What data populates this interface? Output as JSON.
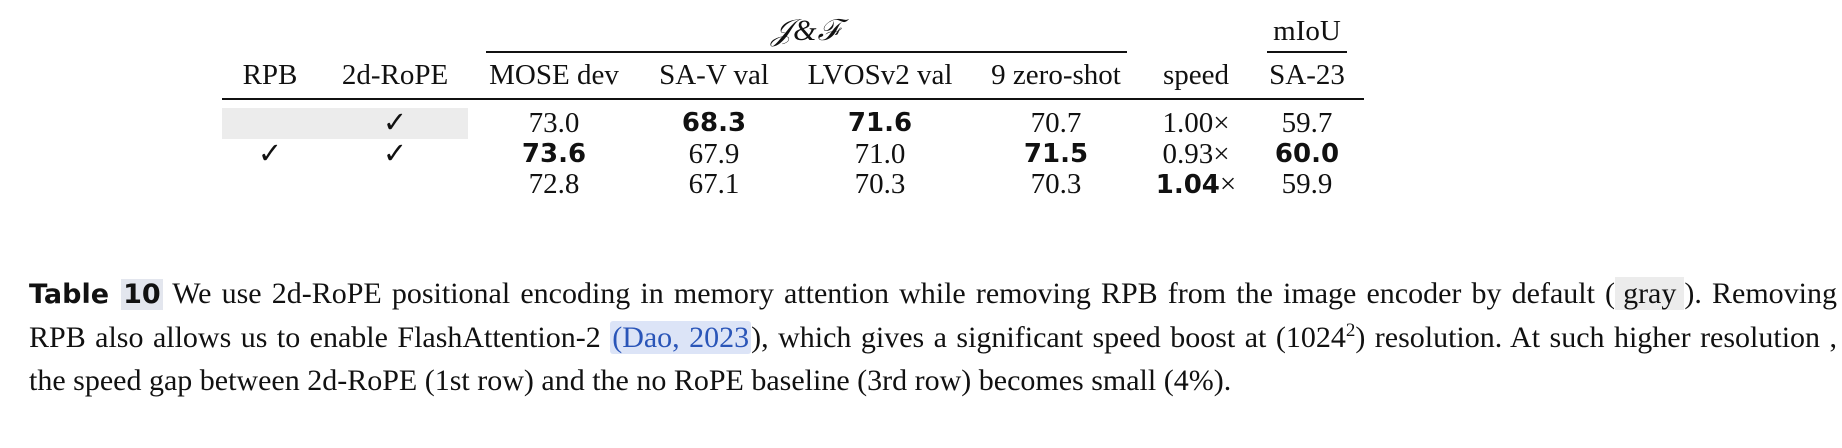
{
  "table": {
    "group_headers": {
      "jf": "𝒥&ℱ",
      "miou": "mIoU"
    },
    "columns": [
      "RPB",
      "2d-RoPE",
      "MOSE dev",
      "SA-V val",
      "LVOSv2 val",
      "9 zero-shot",
      "speed",
      "SA-23"
    ],
    "check_mark": "✓",
    "rows": [
      {
        "rpb": "",
        "rope": "✓",
        "mose": "73.0",
        "sav": "68.3",
        "lvos": "71.6",
        "zs": "70.7",
        "speed": "1.00×",
        "sa23": "59.7"
      },
      {
        "rpb": "✓",
        "rope": "✓",
        "mose": "73.6",
        "sav": "67.9",
        "lvos": "71.0",
        "zs": "71.5",
        "speed": "0.93×",
        "sa23": "60.0"
      },
      {
        "rpb": "",
        "rope": "",
        "mose": "72.8",
        "sav": "67.1",
        "lvos": "70.3",
        "zs": "70.3",
        "speed_num": "1.04",
        "speed_unit": "×",
        "sa23": "59.9"
      }
    ]
  },
  "caption": {
    "label": "Table",
    "number": "10",
    "text_1": "We use 2d-RoPE positional encoding in memory attention while removing RPB from the image encoder by default (",
    "gray_word": "gray",
    "text_2": "). Removing RPB also allows us to enable FlashAttention-2",
    "cite_open": "(",
    "cite_text": "Dao, 2023",
    "cite_close": ")",
    "text_3": ", which gives a significant speed boost at (1024",
    "superscript": "2",
    "text_4": ") resolution. At such higher resolution , the speed gap between 2d-RoPE (1st row) and the no RoPE baseline (3rd row) becomes small (4%)."
  }
}
